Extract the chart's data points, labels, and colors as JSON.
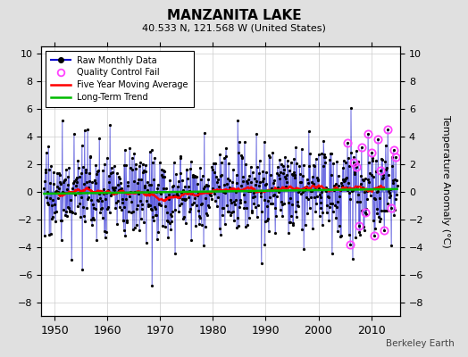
{
  "title": "MANZANITA LAKE",
  "subtitle": "40.533 N, 121.568 W (United States)",
  "ylabel": "Temperature Anomaly (°C)",
  "watermark": "Berkeley Earth",
  "start_year": 1948,
  "end_year": 2015,
  "ylim": [
    -9,
    10.5
  ],
  "yticks": [
    -8,
    -6,
    -4,
    -2,
    0,
    2,
    4,
    6,
    8,
    10
  ],
  "xticks": [
    1950,
    1960,
    1970,
    1980,
    1990,
    2000,
    2010
  ],
  "bg_color": "#e0e0e0",
  "plot_bg_color": "#ffffff",
  "raw_line_color": "#0000cc",
  "raw_dot_color": "#000000",
  "moving_avg_color": "#ff0000",
  "trend_color": "#00bb00",
  "qc_fail_color": "#ff44ff",
  "random_seed": 17,
  "noise_std": 1.6,
  "trend_total": 0.4,
  "moving_avg_base": -0.25
}
